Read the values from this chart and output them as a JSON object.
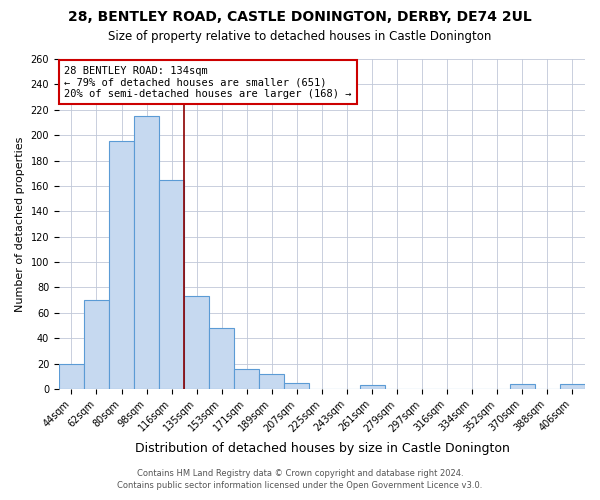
{
  "title": "28, BENTLEY ROAD, CASTLE DONINGTON, DERBY, DE74 2UL",
  "subtitle": "Size of property relative to detached houses in Castle Donington",
  "xlabel": "Distribution of detached houses by size in Castle Donington",
  "ylabel": "Number of detached properties",
  "bar_labels": [
    "44sqm",
    "62sqm",
    "80sqm",
    "98sqm",
    "116sqm",
    "135sqm",
    "153sqm",
    "171sqm",
    "189sqm",
    "207sqm",
    "225sqm",
    "243sqm",
    "261sqm",
    "279sqm",
    "297sqm",
    "316sqm",
    "334sqm",
    "352sqm",
    "370sqm",
    "388sqm",
    "406sqm"
  ],
  "bar_values": [
    20,
    70,
    195,
    215,
    165,
    73,
    48,
    16,
    12,
    5,
    0,
    0,
    3,
    0,
    0,
    0,
    0,
    0,
    4,
    0,
    4
  ],
  "bar_color": "#c6d9f0",
  "bar_edge_color": "#5b9bd5",
  "background_color": "#ffffff",
  "grid_color": "#c0c8d8",
  "annotation_line1": "28 BENTLEY ROAD: 134sqm",
  "annotation_line2": "← 79% of detached houses are smaller (651)",
  "annotation_line3": "20% of semi-detached houses are larger (168) →",
  "annotation_box_color": "#ffffff",
  "annotation_box_edge_color": "#cc0000",
  "annotation_text_color": "#000000",
  "vline_color": "#8b0000",
  "ylim": [
    0,
    260
  ],
  "yticks": [
    0,
    20,
    40,
    60,
    80,
    100,
    120,
    140,
    160,
    180,
    200,
    220,
    240,
    260
  ],
  "footer1": "Contains HM Land Registry data © Crown copyright and database right 2024.",
  "footer2": "Contains public sector information licensed under the Open Government Licence v3.0.",
  "title_fontsize": 10,
  "subtitle_fontsize": 8.5,
  "xlabel_fontsize": 9,
  "ylabel_fontsize": 8,
  "tick_fontsize": 7,
  "footer_fontsize": 6,
  "annotation_fontsize": 7.5,
  "vline_bar_index": 4.5
}
